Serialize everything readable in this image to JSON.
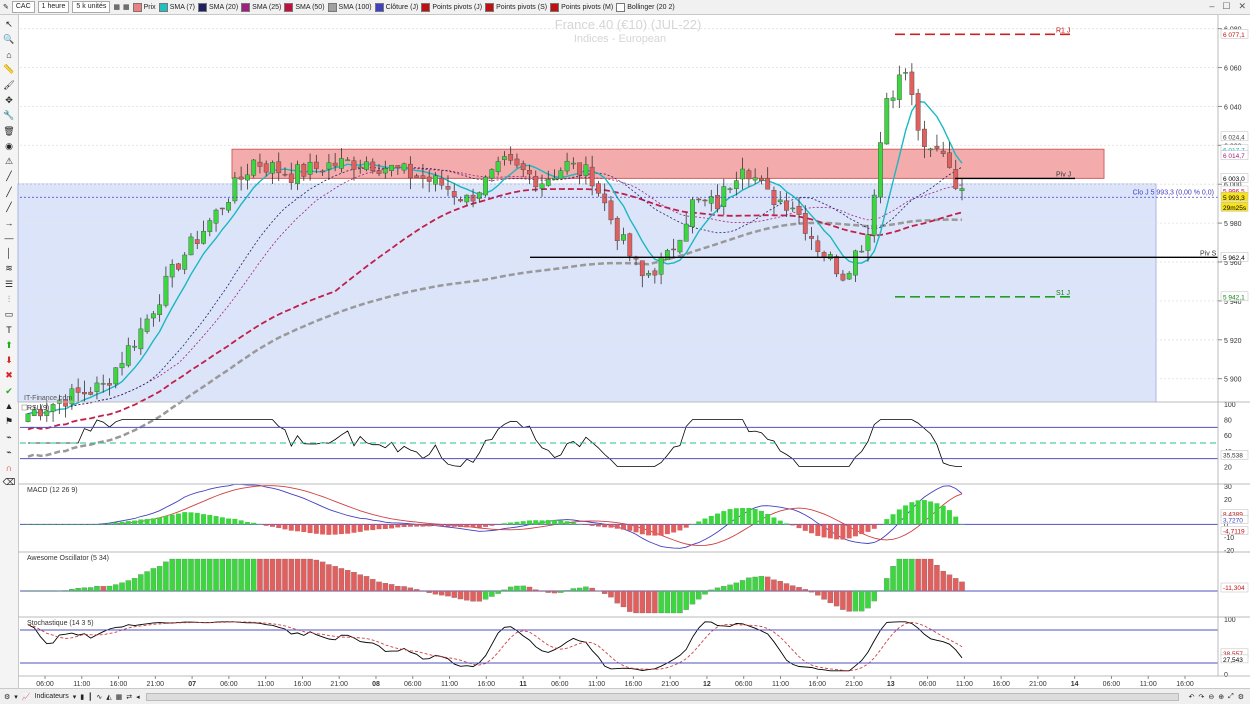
{
  "toolbar": {
    "instrument": "CAC",
    "timeframe": "1 heure",
    "units": "5 k unités",
    "indicators": [
      {
        "label": "Prix",
        "color": "#f08080"
      },
      {
        "label": "SMA (7)",
        "color": "#20c0c0"
      },
      {
        "label": "SMA (20)",
        "color": "#202060"
      },
      {
        "label": "SMA (25)",
        "color": "#a02080"
      },
      {
        "label": "SMA (50)",
        "color": "#c01040"
      },
      {
        "label": "SMA (100)",
        "color": "#a0a0a0"
      },
      {
        "label": "Clôture (J)",
        "color": "#4040c0"
      },
      {
        "label": "Points pivots (J)",
        "color": "#c01010"
      },
      {
        "label": "Points pivots (S)",
        "color": "#c01010"
      },
      {
        "label": "Points pivots (M)",
        "color": "#c01010"
      },
      {
        "label": "Bollinger (20 2)",
        "color": "#ffffff"
      }
    ]
  },
  "watermark": {
    "line1": "France 40 (€10) (JUL-22)",
    "line2": "Indices - European"
  },
  "source": "IT-Finance.com",
  "colors": {
    "up": "#3dd641",
    "down": "#e06060",
    "sma7": "#1ab8c0",
    "sma50": "#c0204a",
    "sma100": "#999999",
    "resistance_zone": "#f2a3a3",
    "blue_zone": "#dce4fa"
  },
  "chart_data": [
    {
      "type": "candlestick",
      "name": "price",
      "pivot_labels": {
        "r1": "R1 J",
        "piv_j": "Piv J",
        "piv_s": "Piv S",
        "s1": "S1 J",
        "close": "Clo J 5 993,3 (0,00 % 0,0)"
      },
      "price_labels": {
        "r1": "6 077,1",
        "p1": "6 024,4",
        "p2": "6 017,7",
        "p3": "6 014,7",
        "p4": "6 003,0",
        "p5": "5 996,5",
        "last": "5 993,3",
        "timer": "29m25s",
        "piv_s": "5 962,4",
        "s1": "5 942,1"
      },
      "y_ticks": [
        "6 080",
        "6 060",
        "6 040",
        "6 020",
        "6 000",
        "5 980",
        "5 960",
        "5 940",
        "5 920",
        "5 900"
      ],
      "levels": {
        "r1": 6077.1,
        "piv_j": 6003.0,
        "piv_s": 5962.4,
        "s1": 5942.1,
        "close": 5993.3,
        "zone_top": 6018,
        "zone_bottom": 6003
      },
      "ylim": [
        5888,
        6086
      ]
    },
    {
      "type": "line",
      "name": "RSI (9)",
      "y_ticks": [
        "100",
        "80",
        "60",
        "40",
        "20"
      ],
      "value_label": "35,538",
      "ylim": [
        0,
        100
      ]
    },
    {
      "type": "bar+line",
      "name": "MACD (12 26 9)",
      "y_ticks": [
        "30",
        "20",
        "10",
        "0",
        "-10",
        "-20"
      ],
      "value_labels": [
        "8,4389",
        "3,7270",
        "-4,7119"
      ]
    },
    {
      "type": "bar",
      "name": "Awesome Oscillator (5 34)",
      "value_label": "-11,304"
    },
    {
      "type": "line",
      "name": "Stochastique (14 3 5)",
      "y_ticks": [
        "100",
        "0"
      ],
      "value_labels": [
        "38,557",
        "27,543"
      ],
      "ylim": [
        0,
        100
      ]
    }
  ],
  "x_axis": {
    "labels": [
      {
        "t": "06:00",
        "b": false
      },
      {
        "t": "11:00",
        "b": false
      },
      {
        "t": "16:00",
        "b": false
      },
      {
        "t": "21:00",
        "b": false
      },
      {
        "t": "07",
        "b": true
      },
      {
        "t": "06:00",
        "b": false
      },
      {
        "t": "11:00",
        "b": false
      },
      {
        "t": "16:00",
        "b": false
      },
      {
        "t": "21:00",
        "b": false
      },
      {
        "t": "08",
        "b": true
      },
      {
        "t": "06:00",
        "b": false
      },
      {
        "t": "11:00",
        "b": false
      },
      {
        "t": "16:00",
        "b": false
      },
      {
        "t": "11",
        "b": true
      },
      {
        "t": "06:00",
        "b": false
      },
      {
        "t": "11:00",
        "b": false
      },
      {
        "t": "16:00",
        "b": false
      },
      {
        "t": "21:00",
        "b": false
      },
      {
        "t": "12",
        "b": true
      },
      {
        "t": "06:00",
        "b": false
      },
      {
        "t": "11:00",
        "b": false
      },
      {
        "t": "16:00",
        "b": false
      },
      {
        "t": "21:00",
        "b": false
      },
      {
        "t": "13",
        "b": true
      },
      {
        "t": "06:00",
        "b": false
      },
      {
        "t": "11:00",
        "b": false
      },
      {
        "t": "16:00",
        "b": false
      },
      {
        "t": "21:00",
        "b": false
      },
      {
        "t": "14",
        "b": true
      },
      {
        "t": "06:00",
        "b": false
      },
      {
        "t": "11:00",
        "b": false
      },
      {
        "t": "16:00",
        "b": false
      }
    ]
  },
  "bottombar": {
    "indicators_label": "Indicateurs"
  }
}
